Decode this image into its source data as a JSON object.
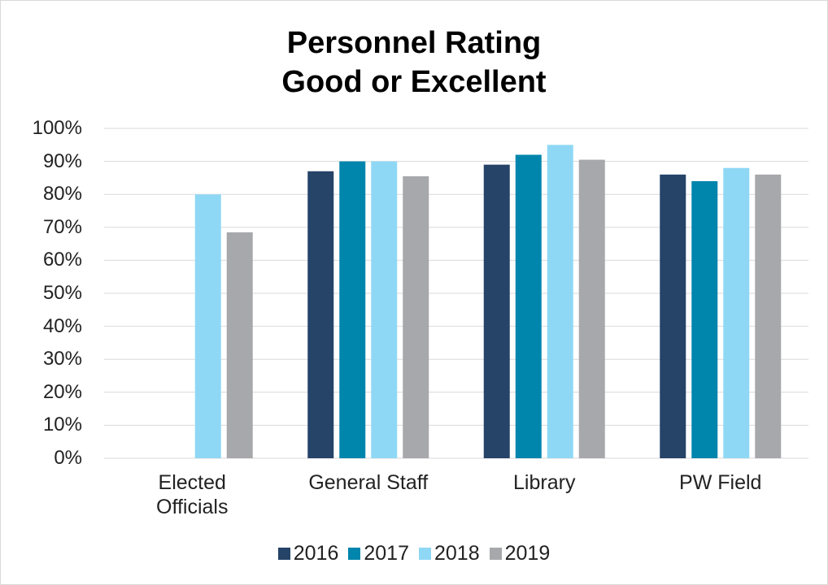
{
  "chart_data": {
    "type": "bar",
    "title": "Personnel Rating\nGood or Excellent",
    "categories": [
      "Elected\nOfficials",
      "General Staff",
      "Library",
      "PW Field"
    ],
    "series": [
      {
        "name": "2016",
        "color": "#264368",
        "values": [
          null,
          87,
          89,
          86
        ]
      },
      {
        "name": "2017",
        "color": "#0085ad",
        "values": [
          null,
          90,
          92,
          84
        ]
      },
      {
        "name": "2018",
        "color": "#8fd8f5",
        "values": [
          80,
          90,
          95,
          88
        ]
      },
      {
        "name": "2019",
        "color": "#a6a8ab",
        "values": [
          68.5,
          85.5,
          90.5,
          86
        ]
      }
    ],
    "ylim": [
      0,
      100
    ],
    "yticks": [
      {
        "value": 0,
        "label": "0%"
      },
      {
        "value": 10,
        "label": "10%"
      },
      {
        "value": 20,
        "label": "20%"
      },
      {
        "value": 30,
        "label": "30%"
      },
      {
        "value": 40,
        "label": "40%"
      },
      {
        "value": 50,
        "label": "50%"
      },
      {
        "value": 60,
        "label": "60%"
      },
      {
        "value": 70,
        "label": "70%"
      },
      {
        "value": 80,
        "label": "80%"
      },
      {
        "value": 90,
        "label": "90%"
      },
      {
        "value": 100,
        "label": "100%"
      }
    ],
    "grid": true,
    "legend": "bottom"
  }
}
